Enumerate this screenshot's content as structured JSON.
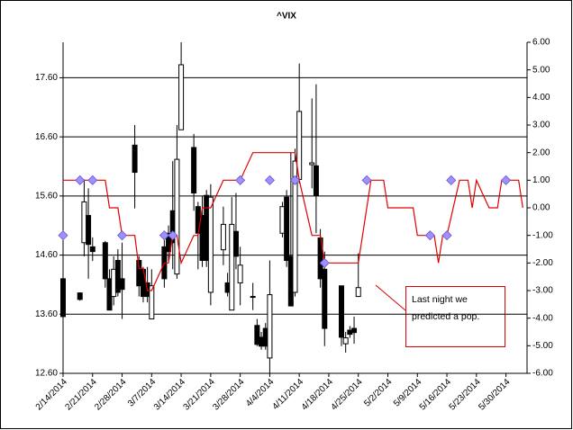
{
  "chart_data": {
    "type": "candlestick",
    "title": "^VIX",
    "x": [
      "2/14/2014",
      "2/18/2014",
      "2/19/2014",
      "2/20/2014",
      "2/21/2014",
      "2/24/2014",
      "2/25/2014",
      "2/26/2014",
      "2/27/2014",
      "2/28/2014",
      "3/3/2014",
      "3/4/2014",
      "3/5/2014",
      "3/6/2014",
      "3/7/2014",
      "3/10/2014",
      "3/11/2014",
      "3/12/2014",
      "3/13/2014",
      "3/14/2014",
      "3/17/2014",
      "3/18/2014",
      "3/19/2014",
      "3/20/2014",
      "3/21/2014",
      "3/24/2014",
      "3/25/2014",
      "3/26/2014",
      "3/27/2014",
      "3/28/2014",
      "3/31/2014",
      "4/1/2014",
      "4/2/2014",
      "4/3/2014",
      "4/4/2014",
      "4/7/2014",
      "4/8/2014",
      "4/9/2014",
      "4/10/2014",
      "4/11/2014",
      "4/14/2014",
      "4/15/2014",
      "4/16/2014",
      "4/17/2014",
      "4/21/2014",
      "4/22/2014",
      "4/23/2014",
      "4/24/2014",
      "4/25/2014"
    ],
    "open": [
      14.2,
      13.96,
      14.81,
      15.27,
      14.74,
      14.81,
      14.2,
      13.9,
      14.51,
      14.2,
      16.46,
      14.51,
      14.36,
      14.13,
      13.52,
      14.74,
      14.97,
      15.35,
      14.28,
      16.72,
      16.42,
      15.42,
      15.27,
      15.61,
      13.97,
      14.69,
      14.13,
      13.67,
      15.0,
      14.13,
      13.9,
      13.41,
      13.21,
      13.36,
      12.86,
      14.97,
      15.58,
      14.58,
      13.97,
      15.88,
      16.13,
      16.11,
      14.89,
      14.36,
      14.08,
      13.1,
      13.33,
      13.36,
      13.9
    ],
    "high": [
      14.28,
      13.97,
      15.88,
      15.73,
      14.9,
      14.84,
      14.36,
      14.58,
      14.7,
      14.81,
      16.8,
      14.58,
      14.4,
      14.4,
      14.36,
      14.89,
      15.1,
      16.19,
      16.8,
      18.2,
      16.65,
      15.5,
      15.6,
      15.7,
      15.8,
      15.42,
      14.3,
      15.58,
      15.65,
      14.74,
      14.13,
      13.52,
      13.3,
      13.45,
      14.51,
      15.5,
      15.7,
      16.34,
      16.4,
      17.84,
      17.25,
      17.49,
      15.04,
      14.66,
      14.08,
      13.3,
      13.4,
      13.56,
      14.63
    ],
    "low": [
      13.45,
      13.83,
      14.58,
      14.2,
      14.5,
      14.05,
      13.67,
      13.75,
      13.9,
      13.52,
      15.39,
      13.9,
      13.8,
      13.8,
      13.52,
      14.05,
      14.5,
      14.36,
      14.2,
      16.72,
      15.35,
      14.36,
      14.4,
      14.4,
      13.75,
      14.43,
      13.9,
      13.67,
      14.36,
      13.75,
      13.67,
      13.06,
      13.0,
      13.0,
      12.6,
      14.9,
      14.4,
      13.74,
      13.9,
      15.81,
      15.73,
      14.97,
      14.05,
      13.06,
      13.06,
      12.95,
      13.2,
      13.1,
      13.9
    ],
    "close": [
      13.56,
      13.85,
      15.5,
      14.78,
      14.66,
      14.2,
      13.67,
      14.36,
      13.97,
      14.02,
      16.0,
      14.08,
      13.9,
      13.9,
      14.08,
      14.2,
      14.66,
      14.81,
      16.22,
      17.82,
      15.65,
      14.97,
      14.51,
      14.51,
      15.58,
      15.12,
      13.97,
      15.12,
      14.58,
      14.43,
      13.89,
      13.09,
      13.06,
      13.06,
      13.93,
      15.42,
      14.51,
      13.74,
      16.19,
      17.03,
      16.16,
      15.61,
      14.2,
      13.36,
      13.21,
      13.2,
      13.26,
      13.29,
      14.05
    ],
    "lines": [
      {
        "color": "#e00000",
        "axis": "y2",
        "x": [
          "2/14/2014",
          "2/24/2014",
          "2/25/2014",
          "2/27/2014",
          "2/28/2014",
          "3/3/2014",
          "3/4/2014",
          "3/5/2014",
          "3/6/2014",
          "3/7/2014",
          "3/10/2014",
          "3/11/2014",
          "3/12/2014",
          "3/13/2014",
          "3/14/2014",
          "3/17/2014",
          "3/18/2014",
          "3/19/2014",
          "3/21/2014",
          "3/24/2014",
          "3/28/2014",
          "3/31/2014",
          "4/10/2014",
          "4/11/2014",
          "4/14/2014",
          "4/16/2014",
          "4/17/2014",
          "4/25/2014",
          "4/28/2014",
          "5/1/2014",
          "5/2/2014",
          "5/8/2014",
          "5/9/2014",
          "5/13/2014",
          "5/14/2014",
          "5/15/2014",
          "5/16/2014",
          "5/19/2014",
          "5/21/2014",
          "5/22/2014",
          "5/23/2014",
          "5/26/2014",
          "5/28/2014",
          "5/29/2014",
          "6/2/2014",
          "6/3/2014"
        ],
        "values": [
          1,
          1,
          0,
          0,
          -1,
          -1,
          -2.2,
          -2.2,
          -3,
          -3,
          -2,
          -2,
          -1,
          -1,
          -2,
          -1,
          -1,
          0,
          0,
          1,
          1,
          2,
          2,
          1,
          -1,
          -1,
          -2,
          -2,
          1,
          1,
          0,
          0,
          -1,
          -1,
          -2,
          -1,
          -1,
          1,
          1,
          0,
          1,
          0,
          0,
          1,
          1,
          0
        ]
      },
      {
        "color": "#9f8fff",
        "axis": "y2",
        "marker": "diamond",
        "x": [
          "2/14/2014",
          "2/18/2014",
          "2/21/2014",
          "2/28/2014",
          "3/10/2014",
          "3/12/2014",
          "3/28/2014",
          "4/4/2014",
          "4/10/2014",
          "4/17/2014",
          "4/27/2014",
          "5/12/2014",
          "5/16/2014",
          "5/17/2014",
          "5/30/2014"
        ],
        "values": [
          -1,
          1,
          1,
          -1,
          -1,
          -1,
          1,
          1,
          1,
          -2,
          1,
          -1,
          -1,
          1,
          1
        ]
      }
    ],
    "annotation": "Last night we predicted a pop.",
    "xlim": [
      "2/14/2014",
      "6/4/2014"
    ],
    "xticks": [
      "2/14/2014",
      "2/21/2014",
      "2/28/2014",
      "3/7/2014",
      "3/14/2014",
      "3/21/2014",
      "3/28/2014",
      "4/4/2014",
      "4/11/2014",
      "4/18/2014",
      "4/25/2014",
      "5/2/2014",
      "5/9/2014",
      "5/16/2014",
      "5/23/2014",
      "5/30/2014"
    ],
    "ylim": [
      12.6,
      18.2
    ],
    "yticks": [
      {
        "value": 12.6,
        "label": "12.60"
      },
      {
        "value": 13.6,
        "label": "13.60"
      },
      {
        "value": 14.6,
        "label": "14.60"
      },
      {
        "value": 15.6,
        "label": "15.60"
      },
      {
        "value": 16.6,
        "label": "16.60"
      },
      {
        "value": 17.6,
        "label": "17.60"
      }
    ],
    "y2lim": [
      -6,
      6
    ],
    "y2ticks": [
      {
        "value": 6,
        "label": "6.00"
      },
      {
        "value": 5,
        "label": "5.00"
      },
      {
        "value": 4,
        "label": "4.00"
      },
      {
        "value": 3,
        "label": "3.00"
      },
      {
        "value": 2,
        "label": "2.00"
      },
      {
        "value": 1,
        "label": "1.00"
      },
      {
        "value": 0,
        "label": "0.00"
      },
      {
        "value": -1,
        "label": "-1.00"
      },
      {
        "value": -2,
        "label": "-2.00"
      },
      {
        "value": -3,
        "label": "-3.00"
      },
      {
        "value": -4,
        "label": "-4.00"
      },
      {
        "value": -5,
        "label": "-5.00"
      },
      {
        "value": -6,
        "label": "-6.00"
      }
    ],
    "grid": true,
    "up_color": "#ffffff",
    "down_color": "#000000"
  }
}
